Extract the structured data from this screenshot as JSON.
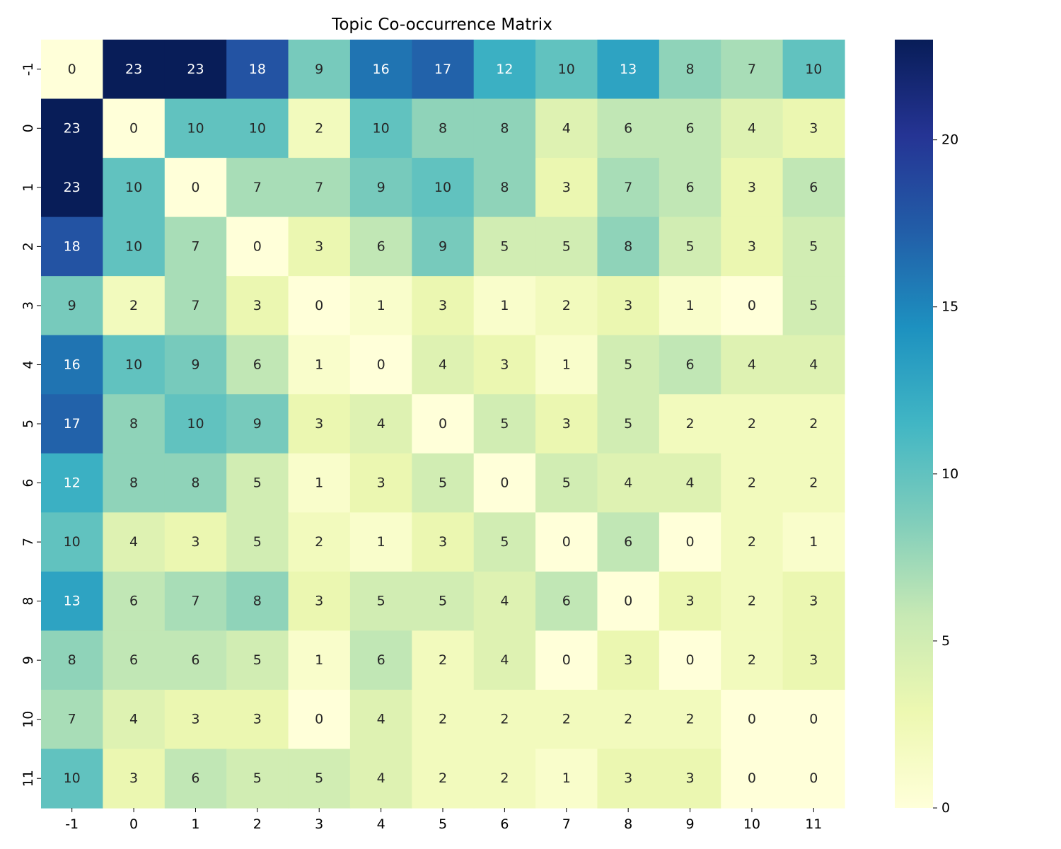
{
  "chart_data": {
    "type": "heatmap",
    "title": "Topic Co-occurrence Matrix",
    "xlabel": "",
    "ylabel": "",
    "x_labels": [
      "-1",
      "0",
      "1",
      "2",
      "3",
      "4",
      "5",
      "6",
      "7",
      "8",
      "9",
      "10",
      "11"
    ],
    "y_labels": [
      "-1",
      "0",
      "1",
      "2",
      "3",
      "4",
      "5",
      "6",
      "7",
      "8",
      "9",
      "10",
      "11"
    ],
    "values": [
      [
        0,
        23,
        23,
        18,
        9,
        16,
        17,
        12,
        10,
        13,
        8,
        7,
        10
      ],
      [
        23,
        0,
        10,
        10,
        2,
        10,
        8,
        8,
        4,
        6,
        6,
        4,
        3
      ],
      [
        23,
        10,
        0,
        7,
        7,
        9,
        10,
        8,
        3,
        7,
        6,
        3,
        6
      ],
      [
        18,
        10,
        7,
        0,
        3,
        6,
        9,
        5,
        5,
        8,
        5,
        3,
        5
      ],
      [
        9,
        2,
        7,
        3,
        0,
        1,
        3,
        1,
        2,
        3,
        1,
        0,
        5
      ],
      [
        16,
        10,
        9,
        6,
        1,
        0,
        4,
        3,
        1,
        5,
        6,
        4,
        4
      ],
      [
        17,
        8,
        10,
        9,
        3,
        4,
        0,
        5,
        3,
        5,
        2,
        2,
        2
      ],
      [
        12,
        8,
        8,
        5,
        1,
        3,
        5,
        0,
        5,
        4,
        4,
        2,
        2
      ],
      [
        10,
        4,
        3,
        5,
        2,
        1,
        3,
        5,
        0,
        6,
        0,
        2,
        1
      ],
      [
        13,
        6,
        7,
        8,
        3,
        5,
        5,
        4,
        6,
        0,
        3,
        2,
        3
      ],
      [
        8,
        6,
        6,
        5,
        1,
        6,
        2,
        4,
        0,
        3,
        0,
        2,
        3
      ],
      [
        7,
        4,
        3,
        3,
        0,
        4,
        2,
        2,
        2,
        2,
        2,
        0,
        0
      ],
      [
        10,
        3,
        6,
        5,
        5,
        4,
        2,
        2,
        1,
        3,
        3,
        0,
        0
      ]
    ],
    "value_range": [
      0,
      23
    ],
    "colormap": "YlGnBu",
    "colorbar": {
      "ticks": [
        0,
        5,
        10,
        15,
        20
      ],
      "tick_labels": [
        "0",
        "5",
        "10",
        "15",
        "20"
      ]
    },
    "annotations": true,
    "grid": false
  }
}
